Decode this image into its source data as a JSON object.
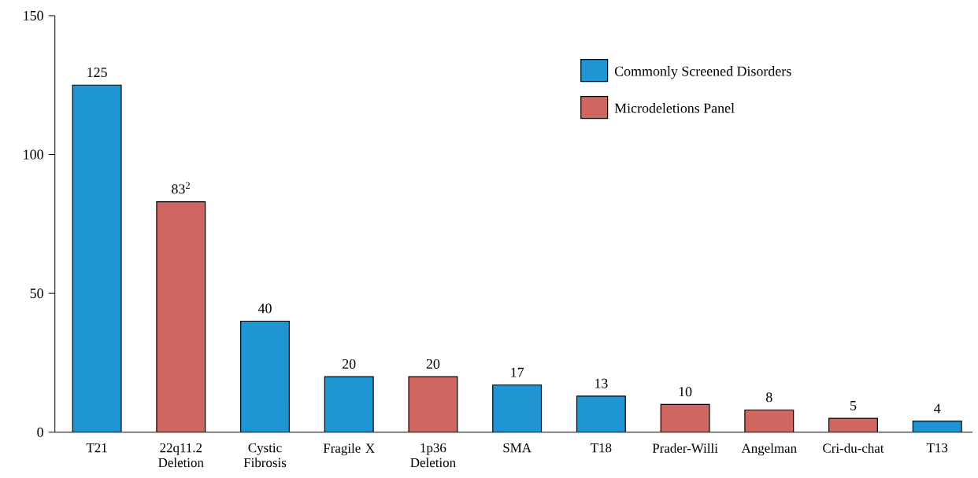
{
  "chart_data": {
    "type": "bar",
    "categories": [
      "T21",
      "22q11.2 Deletion",
      "Cystic Fibrosis",
      "Fragile X",
      "1p36 Deletion",
      "SMA",
      "T18",
      "Prader-Willi",
      "Angelman",
      "Cri-du-chat",
      "T13"
    ],
    "series": [
      {
        "name": "Commonly Screened Disorders",
        "color": "#1f95d4",
        "values": [
          125,
          null,
          40,
          20,
          null,
          17,
          13,
          null,
          null,
          null,
          4
        ],
        "value_labels": [
          "125",
          null,
          "40",
          "20",
          null,
          "17",
          "13",
          null,
          null,
          null,
          "4"
        ]
      },
      {
        "name": "Microdeletions Panel",
        "color": "#cf6660",
        "values": [
          null,
          83,
          null,
          null,
          20,
          null,
          null,
          10,
          8,
          5,
          null
        ],
        "value_labels": [
          null,
          "83$^{2}$",
          null,
          null,
          "20",
          null,
          null,
          "10",
          "8",
          "5",
          null
        ]
      }
    ],
    "ylim": [
      0,
      150
    ],
    "yticks": [
      0,
      50,
      100,
      150
    ],
    "grid": false,
    "legend": "top right"
  }
}
